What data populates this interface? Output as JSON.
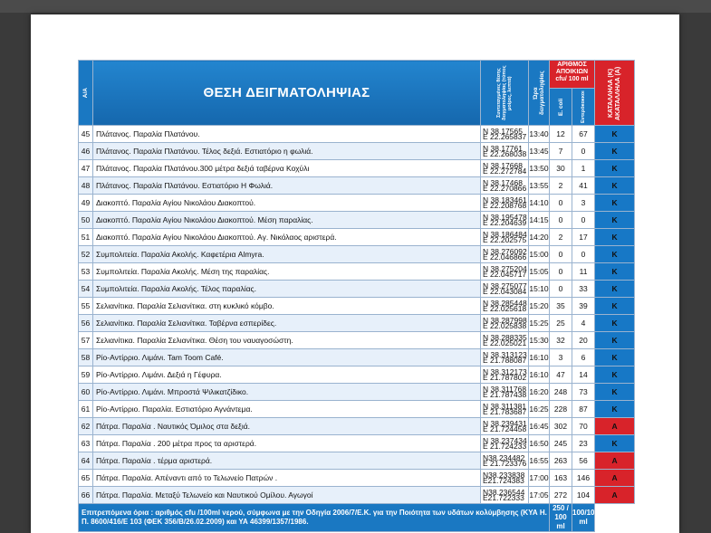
{
  "header": {
    "aa": "Α/Α",
    "position": "ΘΕΣΗ ΔΕΙΓΜΑΤΟΛΗΨΙΑΣ",
    "coords": "Συντεταγμένες θέσης δειγματοληψίας (τύπος μοίρες, λεπτά)",
    "time": "Ώρα δειγματοληψίας",
    "colonies": "ΑΡΙΘΜΟΣ ΑΠΟΙΚΙΩΝ cfu/ 100 ml",
    "ecoli": "E. coli",
    "entero": "Εντερόκοκκοι",
    "quality": "ΚΑΤΑΛΛΗΛΑ (Κ) ΑΚΑΤΑΛΛΗΛΑ (Α)"
  },
  "rows": [
    {
      "n": "45",
      "pos": "Πλάτανος. Παραλία Πλατάνου.",
      "lat": "N 38.17565",
      "lon": "E 22.265837",
      "time": "13:40",
      "ecoli": "12",
      "entero": "67",
      "q": "K"
    },
    {
      "n": "46",
      "pos": "Πλάτανος. Παραλία Πλατάνου. Τέλος δεξιά. Εστιατόριο η φωλιά.",
      "lat": "N 38.17761",
      "lon": "E 22.268038",
      "time": "13:45",
      "ecoli": "7",
      "entero": "0",
      "q": "K"
    },
    {
      "n": "47",
      "pos": "Πλάτανος. Παραλία Πλατάνου.300 μέτρα δεξιά ταβέρνα Κοχύλι",
      "lat": "N 38.17668",
      "lon": "E 22.272784",
      "time": "13:50",
      "ecoli": "30",
      "entero": "1",
      "q": "K"
    },
    {
      "n": "48",
      "pos": "Πλάτανος. Παραλία Πλατάνου. Εστιατόριο Η Φωλιά.",
      "lat": "N 38.17468",
      "lon": "E 22.270866",
      "time": "13:55",
      "ecoli": "2",
      "entero": "41",
      "q": "K"
    },
    {
      "n": "49",
      "pos": "Διακοπτό. Παραλία Αγίου Νικολάου Διακοπτού.",
      "lat": "N 38.183461",
      "lon": "E 22.208768",
      "time": "14:10",
      "ecoli": "0",
      "entero": "3",
      "q": "K"
    },
    {
      "n": "50",
      "pos": "Διακοπτό. Παραλία Αγίου Νικολάου Διακοπτού. Μέση παραλίας.",
      "lat": "N 38.195478",
      "lon": "E 22.204639",
      "time": "14:15",
      "ecoli": "0",
      "entero": "0",
      "q": "K"
    },
    {
      "n": "51",
      "pos": "Διακοπτό. Παραλία Αγίου Νικολάου Διακοπτού. Αγ. Νικόλαος αριστερά.",
      "lat": "N 38.186484",
      "lon": "E 22.202575",
      "time": "14:20",
      "ecoli": "2",
      "entero": "17",
      "q": "K"
    },
    {
      "n": "52",
      "pos": "Συμπολιτεία. Παραλία Ακολής. Καφετέρια Almyra.",
      "lat": "N 38.276092",
      "lon": "E 22.046866",
      "time": "15:00",
      "ecoli": "0",
      "entero": "0",
      "q": "K"
    },
    {
      "n": "53",
      "pos": "Συμπολιτεία. Παραλία Ακολής. Μέση της παραλίας.",
      "lat": "N 38.275204",
      "lon": "E 22.045717",
      "time": "15:05",
      "ecoli": "0",
      "entero": "11",
      "q": "K"
    },
    {
      "n": "54",
      "pos": "Συμπολιτεία. Παραλία Ακολής. Τέλος παραλίας.",
      "lat": "N 38.275077",
      "lon": "E 22.043084",
      "time": "15:10",
      "ecoli": "0",
      "entero": "33",
      "q": "K"
    },
    {
      "n": "55",
      "pos": "Σελιανίτικα. Παραλία Σελιανίτικα. στη κυκλικό κόμβο.",
      "lat": "N 38.285448",
      "lon": "E 22.025618",
      "time": "15:20",
      "ecoli": "35",
      "entero": "39",
      "q": "K"
    },
    {
      "n": "56",
      "pos": "Σελιανίτικα. Παραλία Σελιανίτικα. Ταβέρνα εσπερίδες.",
      "lat": "N 38.287998",
      "lon": "E 22.025838",
      "time": "15:25",
      "ecoli": "25",
      "entero": "4",
      "q": "K"
    },
    {
      "n": "57",
      "pos": "Σελιανίτικα. Παραλία Σελιανίτικα. Θέση του ναυαγοσώστη.",
      "lat": "N 38.288335",
      "lon": "E 22.025021",
      "time": "15:30",
      "ecoli": "32",
      "entero": "20",
      "q": "K"
    },
    {
      "n": "58",
      "pos": "Ρίο-Αντίρριο. Λιμάνι. Tam Toom Café.",
      "lat": "N 38.313123",
      "lon": "E 21.788087",
      "time": "16:10",
      "ecoli": "3",
      "entero": "6",
      "q": "K"
    },
    {
      "n": "59",
      "pos": "Ρίο-Αντίρριο. Λιμάνι. Δεξιά η Γέφυρα.",
      "lat": "N 38.312173",
      "lon": "E 21.787802",
      "time": "16:10",
      "ecoli": "47",
      "entero": "14",
      "q": "K"
    },
    {
      "n": "60",
      "pos": "Ρίο-Αντίρριο. Λιμάνι. Μπροστά Ψιλικατζίδικο.",
      "lat": "N 38.311768",
      "lon": "E 21.787438",
      "time": "16:20",
      "ecoli": "248",
      "entero": "73",
      "q": "K"
    },
    {
      "n": "61",
      "pos": "Ρίο-Αντίρριο. Παραλία. Εστιατόριο Αγνάντεμα.",
      "lat": "N 38.311381",
      "lon": "E 21.783687",
      "time": "16:25",
      "ecoli": "228",
      "entero": "87",
      "q": "K"
    },
    {
      "n": "62",
      "pos": "Πάτρα. Παραλία . Ναυτικός Όμιλος στα δεξιά.",
      "lat": "N 38.239431",
      "lon": "E 21.724458",
      "time": "16:45",
      "ecoli": "302",
      "entero": "70",
      "q": "A"
    },
    {
      "n": "63",
      "pos": "Πάτρα. Παραλία . 200 μέτρα προς τα αριστερά.",
      "lat": "N 38.237434",
      "lon": "E 21.724233",
      "time": "16:50",
      "ecoli": "245",
      "entero": "23",
      "q": "K"
    },
    {
      "n": "64",
      "pos": "Πάτρα. Παραλία . τέρμα αριστερά.",
      "lat": "N38.234482",
      "lon": "E 21.723376",
      "time": "16:55",
      "ecoli": "263",
      "entero": "56",
      "q": "A"
    },
    {
      "n": "65",
      "pos": "Πάτρα. Παραλία. Απέναντι από το Τελωνείο Πατρών .",
      "lat": "N38.233838",
      "lon": "E21.724383",
      "time": "17:00",
      "ecoli": "163",
      "entero": "146",
      "q": "A"
    },
    {
      "n": "66",
      "pos": "Πάτρα. Παραλία. Μεταξύ Τελωνείο και Ναυτικού Ομίλου. Αγωγοί",
      "lat": "N38.236544",
      "lon": "E21.722333",
      "time": "17:05",
      "ecoli": "272",
      "entero": "104",
      "q": "A"
    }
  ],
  "footer": {
    "note": "Επιτρεπόμενα όρια : αριθμός cfu /100ml νερού, σύμφωνα με την Οδηγία 2006/7/Ε.Κ. για την Ποιότητα των υδάτων κολύμβησης (ΚΥΑ Η. Π. 8600/416/Ε 103 (ΦΕΚ 356/Β/26.02.2009) και ΥΑ 46399/1357/1986.",
    "ecoli_limit": "250 / 100 ml",
    "entero_limit": "100/100 ml"
  },
  "colors": {
    "blue": "#1a78c2",
    "red": "#d8232a",
    "rowAlt": "#e7f0fa"
  }
}
